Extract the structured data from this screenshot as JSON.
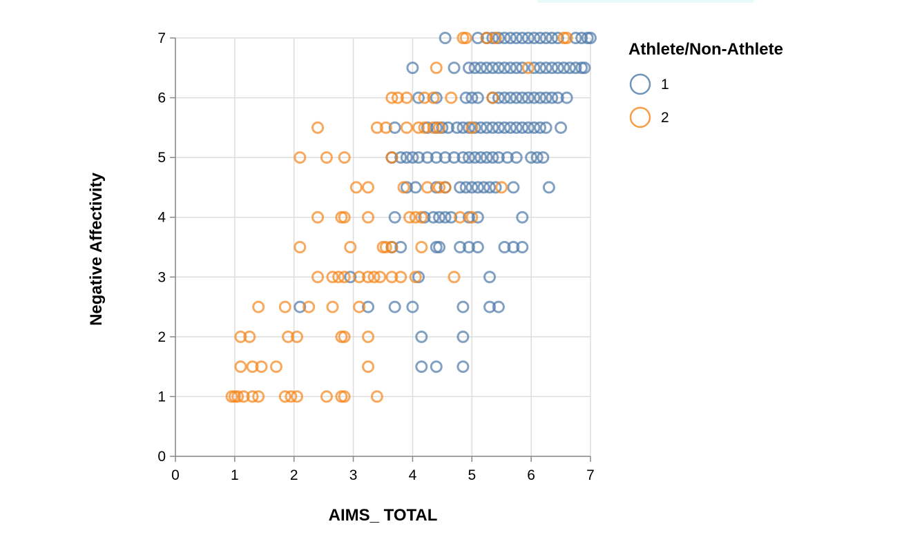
{
  "chart_data": {
    "type": "scatter",
    "xlabel": "AIMS_ TOTAL",
    "ylabel": "Negative Affectivity",
    "xlim": [
      0,
      7
    ],
    "ylim": [
      0,
      7
    ],
    "x_ticks": [
      "0",
      "1",
      "2",
      "3",
      "4",
      "5",
      "6",
      "7"
    ],
    "y_ticks": [
      "0",
      "1",
      "2",
      "3",
      "4",
      "5",
      "6",
      "7"
    ],
    "grid": true,
    "marker": "open-circle",
    "legend": {
      "title": "Athlete/Non-Athlete",
      "position": "right",
      "entries": [
        "1",
        "2"
      ]
    },
    "series": [
      {
        "name": "1",
        "color": "#4c78a8",
        "points": [
          [
            4.55,
            7
          ],
          [
            5.1,
            7
          ],
          [
            5.25,
            7
          ],
          [
            5.35,
            7
          ],
          [
            5.45,
            7
          ],
          [
            5.55,
            7
          ],
          [
            5.65,
            7
          ],
          [
            5.75,
            7
          ],
          [
            5.85,
            7
          ],
          [
            5.95,
            7
          ],
          [
            6.05,
            7
          ],
          [
            6.15,
            7
          ],
          [
            6.25,
            7
          ],
          [
            6.35,
            7
          ],
          [
            6.45,
            7
          ],
          [
            6.75,
            7
          ],
          [
            6.85,
            7
          ],
          [
            6.95,
            7
          ],
          [
            7.0,
            7
          ],
          [
            4.0,
            6.5
          ],
          [
            4.7,
            6.5
          ],
          [
            4.95,
            6.5
          ],
          [
            5.05,
            6.5
          ],
          [
            5.15,
            6.5
          ],
          [
            5.25,
            6.5
          ],
          [
            5.35,
            6.5
          ],
          [
            5.45,
            6.5
          ],
          [
            5.55,
            6.5
          ],
          [
            5.65,
            6.5
          ],
          [
            5.75,
            6.5
          ],
          [
            5.85,
            6.5
          ],
          [
            6.05,
            6.5
          ],
          [
            6.15,
            6.5
          ],
          [
            6.25,
            6.5
          ],
          [
            6.35,
            6.5
          ],
          [
            6.45,
            6.5
          ],
          [
            6.55,
            6.5
          ],
          [
            6.65,
            6.5
          ],
          [
            6.75,
            6.5
          ],
          [
            6.85,
            6.5
          ],
          [
            6.9,
            6.5
          ],
          [
            4.1,
            6
          ],
          [
            4.4,
            6
          ],
          [
            4.9,
            6
          ],
          [
            5.0,
            6
          ],
          [
            5.1,
            6
          ],
          [
            5.35,
            6
          ],
          [
            5.45,
            6
          ],
          [
            5.55,
            6
          ],
          [
            5.65,
            6
          ],
          [
            5.75,
            6
          ],
          [
            5.85,
            6
          ],
          [
            5.95,
            6
          ],
          [
            6.05,
            6
          ],
          [
            6.15,
            6
          ],
          [
            6.25,
            6
          ],
          [
            6.35,
            6
          ],
          [
            6.45,
            6
          ],
          [
            6.6,
            6
          ],
          [
            3.7,
            5.5
          ],
          [
            4.25,
            5.5
          ],
          [
            4.4,
            5.5
          ],
          [
            4.5,
            5.5
          ],
          [
            4.6,
            5.5
          ],
          [
            4.75,
            5.5
          ],
          [
            4.85,
            5.5
          ],
          [
            4.95,
            5.5
          ],
          [
            5.05,
            5.5
          ],
          [
            5.15,
            5.5
          ],
          [
            5.25,
            5.5
          ],
          [
            5.35,
            5.5
          ],
          [
            5.45,
            5.5
          ],
          [
            5.55,
            5.5
          ],
          [
            5.65,
            5.5
          ],
          [
            5.75,
            5.5
          ],
          [
            5.85,
            5.5
          ],
          [
            5.95,
            5.5
          ],
          [
            6.05,
            5.5
          ],
          [
            6.15,
            5.5
          ],
          [
            6.25,
            5.5
          ],
          [
            6.5,
            5.5
          ],
          [
            3.65,
            5
          ],
          [
            3.8,
            5
          ],
          [
            3.9,
            5
          ],
          [
            4.0,
            5
          ],
          [
            4.1,
            5
          ],
          [
            4.25,
            5
          ],
          [
            4.4,
            5
          ],
          [
            4.55,
            5
          ],
          [
            4.7,
            5
          ],
          [
            4.85,
            5
          ],
          [
            4.95,
            5
          ],
          [
            5.05,
            5
          ],
          [
            5.15,
            5
          ],
          [
            5.25,
            5
          ],
          [
            5.35,
            5
          ],
          [
            5.45,
            5
          ],
          [
            5.6,
            5
          ],
          [
            5.75,
            5
          ],
          [
            6.0,
            5
          ],
          [
            6.1,
            5
          ],
          [
            6.2,
            5
          ],
          [
            3.9,
            4.5
          ],
          [
            4.05,
            4.5
          ],
          [
            4.4,
            4.5
          ],
          [
            4.55,
            4.5
          ],
          [
            4.8,
            4.5
          ],
          [
            4.9,
            4.5
          ],
          [
            5.0,
            4.5
          ],
          [
            5.1,
            4.5
          ],
          [
            5.2,
            4.5
          ],
          [
            5.3,
            4.5
          ],
          [
            5.4,
            4.5
          ],
          [
            5.7,
            4.5
          ],
          [
            6.3,
            4.5
          ],
          [
            3.7,
            4
          ],
          [
            4.2,
            4
          ],
          [
            4.35,
            4
          ],
          [
            4.45,
            4
          ],
          [
            4.55,
            4
          ],
          [
            4.65,
            4
          ],
          [
            4.95,
            4
          ],
          [
            5.1,
            4
          ],
          [
            5.85,
            4
          ],
          [
            3.65,
            3.5
          ],
          [
            3.8,
            3.5
          ],
          [
            4.4,
            3.5
          ],
          [
            4.45,
            3.5
          ],
          [
            4.8,
            3.5
          ],
          [
            4.95,
            3.5
          ],
          [
            5.1,
            3.5
          ],
          [
            5.55,
            3.5
          ],
          [
            5.7,
            3.5
          ],
          [
            5.85,
            3.5
          ],
          [
            2.95,
            3
          ],
          [
            4.1,
            3
          ],
          [
            5.3,
            3
          ],
          [
            2.1,
            2.5
          ],
          [
            3.25,
            2.5
          ],
          [
            3.7,
            2.5
          ],
          [
            4.0,
            2.5
          ],
          [
            4.85,
            2.5
          ],
          [
            5.3,
            2.5
          ],
          [
            5.45,
            2.5
          ],
          [
            4.15,
            2
          ],
          [
            4.85,
            2
          ],
          [
            4.15,
            1.5
          ],
          [
            4.4,
            1.5
          ],
          [
            4.85,
            1.5
          ]
        ]
      },
      {
        "name": "2",
        "color": "#f58518",
        "points": [
          [
            4.85,
            7
          ],
          [
            4.9,
            7
          ],
          [
            5.25,
            7
          ],
          [
            5.4,
            7
          ],
          [
            6.55,
            7
          ],
          [
            6.6,
            7
          ],
          [
            4.4,
            6.5
          ],
          [
            5.95,
            6.5
          ],
          [
            3.65,
            6
          ],
          [
            3.75,
            6
          ],
          [
            3.9,
            6
          ],
          [
            4.2,
            6
          ],
          [
            4.35,
            6
          ],
          [
            4.65,
            6
          ],
          [
            5.35,
            6
          ],
          [
            2.4,
            5.5
          ],
          [
            3.4,
            5.5
          ],
          [
            3.55,
            5.5
          ],
          [
            3.9,
            5.5
          ],
          [
            4.1,
            5.5
          ],
          [
            4.2,
            5.5
          ],
          [
            4.35,
            5.5
          ],
          [
            4.45,
            5.5
          ],
          [
            5.0,
            5.5
          ],
          [
            2.1,
            5
          ],
          [
            2.55,
            5
          ],
          [
            2.85,
            5
          ],
          [
            3.65,
            5
          ],
          [
            3.05,
            4.5
          ],
          [
            3.25,
            4.5
          ],
          [
            3.85,
            4.5
          ],
          [
            4.25,
            4.5
          ],
          [
            4.45,
            4.5
          ],
          [
            4.55,
            4.5
          ],
          [
            5.5,
            4.5
          ],
          [
            2.4,
            4
          ],
          [
            2.8,
            4
          ],
          [
            2.85,
            4
          ],
          [
            3.25,
            4
          ],
          [
            3.95,
            4
          ],
          [
            4.05,
            4
          ],
          [
            4.15,
            4
          ],
          [
            4.8,
            4
          ],
          [
            5.0,
            4
          ],
          [
            2.1,
            3.5
          ],
          [
            2.95,
            3.5
          ],
          [
            3.5,
            3.5
          ],
          [
            3.55,
            3.5
          ],
          [
            3.65,
            3.5
          ],
          [
            4.15,
            3.5
          ],
          [
            2.4,
            3
          ],
          [
            2.65,
            3
          ],
          [
            2.75,
            3
          ],
          [
            2.85,
            3
          ],
          [
            3.1,
            3
          ],
          [
            3.25,
            3
          ],
          [
            3.35,
            3
          ],
          [
            3.45,
            3
          ],
          [
            3.65,
            3
          ],
          [
            3.8,
            3
          ],
          [
            4.05,
            3
          ],
          [
            4.7,
            3
          ],
          [
            1.4,
            2.5
          ],
          [
            1.85,
            2.5
          ],
          [
            2.25,
            2.5
          ],
          [
            2.65,
            2.5
          ],
          [
            3.1,
            2.5
          ],
          [
            1.1,
            2
          ],
          [
            1.25,
            2
          ],
          [
            1.9,
            2
          ],
          [
            2.05,
            2
          ],
          [
            2.8,
            2
          ],
          [
            2.85,
            2
          ],
          [
            3.25,
            2
          ],
          [
            1.1,
            1.5
          ],
          [
            1.3,
            1.5
          ],
          [
            1.45,
            1.5
          ],
          [
            1.7,
            1.5
          ],
          [
            3.25,
            1.5
          ],
          [
            0.95,
            1
          ],
          [
            1.0,
            1
          ],
          [
            1.05,
            1
          ],
          [
            1.15,
            1
          ],
          [
            1.3,
            1
          ],
          [
            1.4,
            1
          ],
          [
            1.85,
            1
          ],
          [
            1.95,
            1
          ],
          [
            2.05,
            1
          ],
          [
            2.55,
            1
          ],
          [
            2.8,
            1
          ],
          [
            2.85,
            1
          ],
          [
            3.4,
            1
          ]
        ]
      }
    ]
  }
}
